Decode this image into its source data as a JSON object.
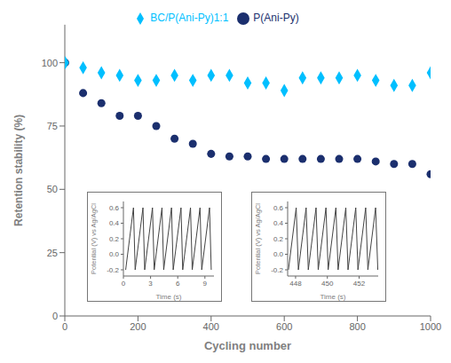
{
  "chart_data": [
    {
      "type": "scatter",
      "xlabel": "Cycling number",
      "ylabel": "Retention stability (%)",
      "xlim": [
        0,
        1000
      ],
      "ylim": [
        0,
        115
      ],
      "xticks": [
        0,
        200,
        400,
        600,
        800,
        1000
      ],
      "yticks": [
        0,
        25,
        50,
        75,
        100
      ],
      "legend": "top",
      "x": [
        1,
        50,
        100,
        150,
        200,
        250,
        300,
        350,
        400,
        450,
        500,
        550,
        600,
        650,
        700,
        750,
        800,
        850,
        900,
        950,
        1000
      ],
      "series": [
        {
          "name": "P(Ani-Py)",
          "color": "#1b2f6e",
          "marker": "circle",
          "values": [
            100,
            88,
            84,
            79,
            79,
            75,
            70,
            68,
            64,
            63,
            63,
            62,
            62,
            62,
            62,
            62,
            62,
            61,
            60,
            60,
            56
          ]
        },
        {
          "name": "BC/P(Ani-Py)1:1",
          "color": "#00bfff",
          "marker": "diamond",
          "values": [
            100,
            98,
            96,
            95,
            93,
            93,
            95,
            93,
            95,
            95,
            92,
            92,
            89,
            94,
            94,
            94,
            95,
            93,
            91,
            91,
            96
          ]
        }
      ]
    },
    {
      "type": "line",
      "xlabel": "Time (s)",
      "ylabel": "Potential (V) vs Ag/AgCl",
      "xlim": [
        0,
        10
      ],
      "ylim": [
        -0.28,
        0.68
      ],
      "xticks": [
        0,
        3,
        6,
        9
      ],
      "yticks": [
        -0.2,
        {
          "value": 0,
          "label": "0.0"
        },
        0.2,
        0.4,
        0.6
      ],
      "x": [
        0.25,
        1.111,
        1.3,
        2.161,
        2.35,
        3.211,
        3.4,
        4.261,
        4.45,
        5.311,
        5.5,
        6.361,
        6.55,
        7.411,
        7.6,
        8.461,
        8.65,
        9.511,
        9.7
      ],
      "series": [
        {
          "color": "#444444",
          "values": [
            -0.2,
            0.6,
            -0.2,
            0.6,
            -0.2,
            0.6,
            -0.2,
            0.6,
            -0.2,
            0.6,
            -0.2,
            0.6,
            -0.2,
            0.6,
            -0.2,
            0.6,
            -0.2,
            0.6,
            -0.2
          ]
        }
      ]
    },
    {
      "type": "line",
      "xlabel": "Time (s)",
      "ylabel": "Potential (V) vs Ag/AgCl",
      "xlim": [
        447.5,
        453.2
      ],
      "ylim": [
        -0.28,
        0.68
      ],
      "xticks": [
        448,
        450,
        452
      ],
      "yticks": [
        -0.2,
        {
          "value": 0,
          "label": "0.0"
        },
        0.2,
        0.4,
        0.6
      ],
      "x": [
        447.55,
        448.0375,
        448.175,
        448.6625,
        448.8,
        449.2875,
        449.425,
        449.9125,
        450.05,
        450.5375,
        450.675,
        451.1625,
        451.3,
        451.7875,
        451.925,
        452.4125,
        452.55,
        453.0375,
        453.175
      ],
      "series": [
        {
          "color": "#444444",
          "values": [
            -0.2,
            0.6,
            -0.2,
            0.6,
            -0.2,
            0.6,
            -0.2,
            0.6,
            -0.2,
            0.6,
            -0.2,
            0.6,
            -0.2,
            0.6,
            -0.2,
            0.6,
            -0.2,
            0.6,
            -0.2
          ]
        }
      ]
    }
  ]
}
